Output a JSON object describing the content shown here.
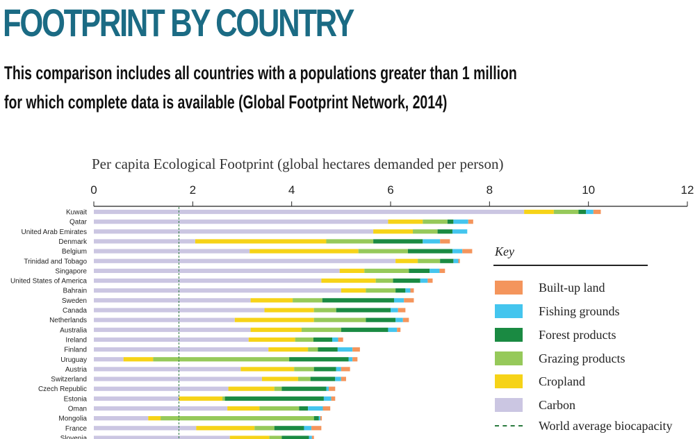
{
  "header": {
    "title": "FOOTPRINT BY COUNTRY",
    "subtitle_line1": "This comparison includes all countries with a populations greater than 1 million",
    "subtitle_line2": "for which complete data is available (Global Footprint Network, 2014)"
  },
  "key": {
    "title": "Key",
    "items": [
      {
        "label": "Built-up land",
        "color": "#f4955c"
      },
      {
        "label": "Fishing grounds",
        "color": "#44c5ee"
      },
      {
        "label": "Forest products",
        "color": "#1a8a42"
      },
      {
        "label": "Grazing products",
        "color": "#96c95a"
      },
      {
        "label": "Cropland",
        "color": "#f6d318"
      },
      {
        "label": "Carbon",
        "color": "#cbc6e2"
      }
    ],
    "biocapacity_label": "World average biocapacity",
    "biocapacity_color": "#2a7a3e"
  },
  "chart_data": {
    "type": "bar",
    "orientation": "horizontal",
    "stacked": true,
    "title": "Per capita Ecological Footprint (global hectares demanded per person)",
    "xlim": [
      0,
      12
    ],
    "xticks": [
      0,
      2,
      4,
      6,
      8,
      10,
      12
    ],
    "grid": false,
    "reference_line": {
      "name": "World average biocapacity",
      "value": 1.72,
      "style": "dashed"
    },
    "categories": [
      "Kuwait",
      "Qatar",
      "United Arab Emirates",
      "Denmark",
      "Belgium",
      "Trinidad and Tobago",
      "Singapore",
      "United States of America",
      "Bahrain",
      "Sweden",
      "Canada",
      "Netherlands",
      "Australia",
      "Ireland",
      "Finland",
      "Uruguay",
      "Austria",
      "Switzerland",
      "Czech Republic",
      "Estonia",
      "Oman",
      "Mongolia",
      "France",
      "Slovenia"
    ],
    "series": [
      {
        "name": "Carbon",
        "color": "#cbc6e2",
        "values": [
          8.7,
          5.95,
          5.65,
          2.05,
          3.15,
          6.1,
          4.97,
          4.6,
          5.0,
          3.17,
          3.45,
          2.85,
          3.17,
          3.13,
          3.53,
          0.6,
          2.97,
          3.4,
          2.72,
          1.72,
          2.7,
          1.1,
          2.07,
          2.75
        ]
      },
      {
        "name": "Cropland",
        "color": "#f6d318",
        "values": [
          0.6,
          0.7,
          0.8,
          2.65,
          2.2,
          0.45,
          0.5,
          1.1,
          0.5,
          0.85,
          1.0,
          1.6,
          1.03,
          0.94,
          0.8,
          0.6,
          1.08,
          0.73,
          0.93,
          0.88,
          0.65,
          0.25,
          1.18,
          0.8
        ]
      },
      {
        "name": "Grazing products",
        "color": "#96c95a",
        "values": [
          0.5,
          0.5,
          0.5,
          0.95,
          1.0,
          0.45,
          0.9,
          0.35,
          0.6,
          0.6,
          0.45,
          1.05,
          0.8,
          0.37,
          0.2,
          2.75,
          0.4,
          0.25,
          0.15,
          0.05,
          0.8,
          3.1,
          0.4,
          0.25
        ]
      },
      {
        "name": "Forest products",
        "color": "#1a8a42",
        "values": [
          0.15,
          0.12,
          0.3,
          1.0,
          0.9,
          0.27,
          0.42,
          0.55,
          0.2,
          1.45,
          1.1,
          0.6,
          0.95,
          0.38,
          0.4,
          1.2,
          0.45,
          0.5,
          0.9,
          2.0,
          0.18,
          0.1,
          0.6,
          0.55
        ]
      },
      {
        "name": "Fishing grounds",
        "color": "#44c5ee",
        "values": [
          0.15,
          0.3,
          0.3,
          0.35,
          0.2,
          0.1,
          0.2,
          0.15,
          0.1,
          0.2,
          0.15,
          0.15,
          0.18,
          0.12,
          0.3,
          0.08,
          0.1,
          0.12,
          0.05,
          0.15,
          0.3,
          0.03,
          0.15,
          0.06
        ]
      },
      {
        "name": "Built-up land",
        "color": "#f4955c",
        "values": [
          0.15,
          0.1,
          0.0,
          0.2,
          0.2,
          0.03,
          0.11,
          0.1,
          0.07,
          0.2,
          0.15,
          0.12,
          0.07,
          0.1,
          0.15,
          0.1,
          0.18,
          0.1,
          0.13,
          0.08,
          0.15,
          0.03,
          0.2,
          0.04
        ]
      }
    ]
  }
}
